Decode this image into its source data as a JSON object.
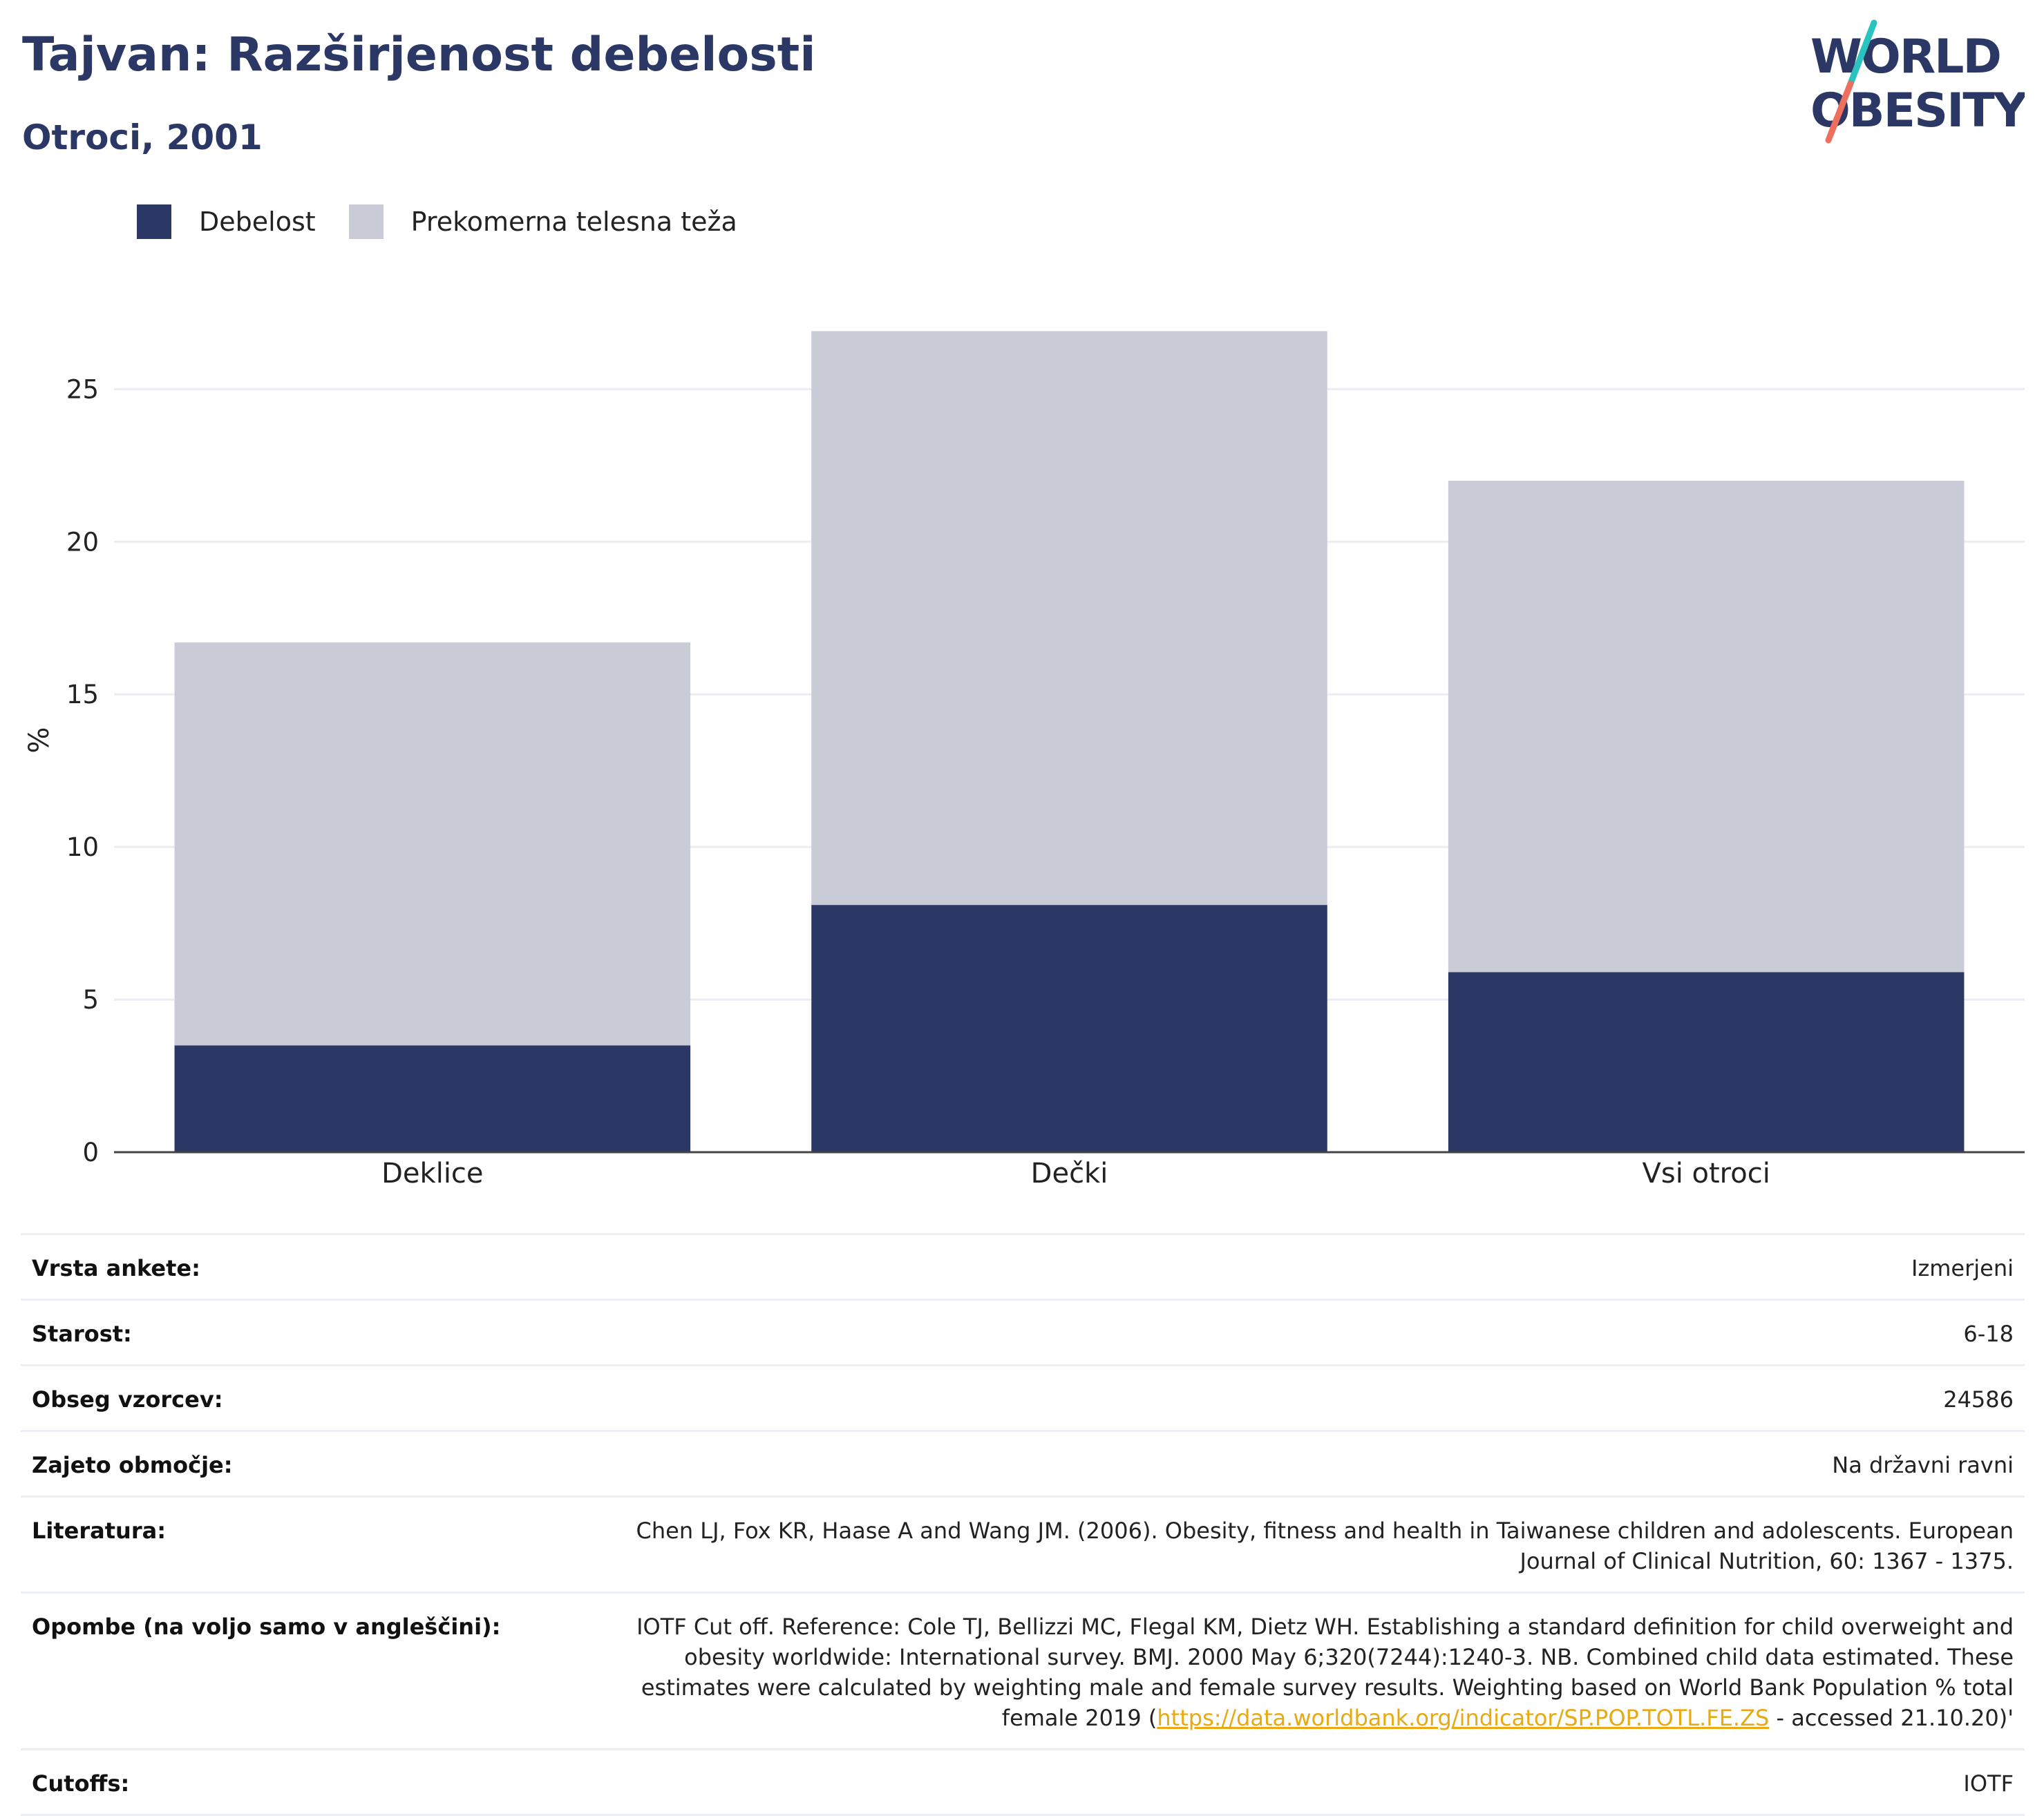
{
  "header": {
    "title": "Tajvan: Razširjenost debelosti",
    "subtitle": "Otroci, 2001",
    "logo_line1": "WORLD",
    "logo_line2": "OBESITY"
  },
  "colors": {
    "obesity": "#2b3764",
    "overweight": "#c9cbd7",
    "title": "#2b3764",
    "logo_teal": "#29c3c0",
    "logo_coral": "#ef6f5e",
    "link": "#e8a913"
  },
  "legend": [
    {
      "label": "Debelost",
      "color": "#2b3764"
    },
    {
      "label": "Prekomerna telesna teža",
      "color": "#c9cbd7"
    }
  ],
  "chart_data": {
    "type": "bar",
    "stacked": true,
    "categories": [
      "Deklice",
      "Dečki",
      "Vsi otroci"
    ],
    "series": [
      {
        "name": "Debelost",
        "values": [
          3.5,
          8.1,
          5.9
        ]
      },
      {
        "name": "Prekomerna telesna teža",
        "values": [
          13.2,
          18.8,
          16.1
        ]
      }
    ],
    "ylabel": "%",
    "ylim": [
      0,
      27
    ],
    "yticks": [
      0,
      5,
      10,
      15,
      20,
      25
    ],
    "grid": true,
    "legend_position": "top-left"
  },
  "info": [
    {
      "label": "Vrsta ankete:",
      "value": "Izmerjeni"
    },
    {
      "label": "Starost:",
      "value": "6-18"
    },
    {
      "label": "Obseg vzorcev:",
      "value": "24586"
    },
    {
      "label": "Zajeto območje:",
      "value": "Na državni ravni"
    },
    {
      "label": "Literatura:",
      "value": "Chen LJ, Fox KR, Haase A and Wang JM. (2006). Obesity, fitness and health in Taiwanese children and adolescents. European Journal of Clinical Nutrition, 60: 1367 - 1375."
    },
    {
      "label": "Opombe (na voljo samo v angleščini):",
      "value": "IOTF Cut off. Reference: Cole TJ, Bellizzi MC, Flegal KM, Dietz WH. Establishing a standard definition for child overweight and obesity worldwide: International survey. BMJ. 2000 May 6;320(7244):1240-3. NB. Combined child data estimated. These estimates were calculated by weighting male and female survey results. Weighting based on World Bank Population % total female 2019 (",
      "link": "https://data.worldbank.org/indicator/SP.POP.TOTL.FE.ZS",
      "value_after": " - accessed 21.10.20)'"
    },
    {
      "label": "Cutoffs:",
      "value": "IOTF"
    }
  ]
}
